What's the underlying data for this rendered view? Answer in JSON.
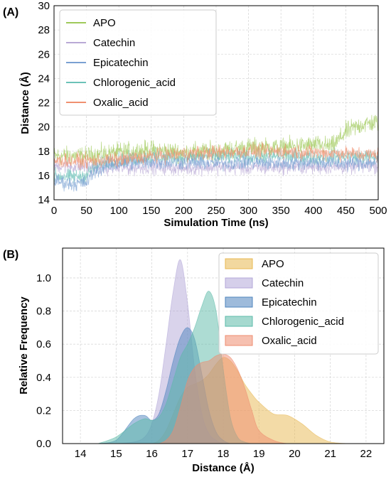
{
  "chart_data": [
    {
      "panel_label": "(A)",
      "type": "line",
      "xlabel": "Simulation Time (ns)",
      "ylabel": "Distance (Å)",
      "xlim": [
        0,
        500
      ],
      "ylim": [
        14,
        30
      ],
      "xticks": [
        0,
        50,
        100,
        150,
        200,
        250,
        300,
        350,
        400,
        450,
        500
      ],
      "yticks": [
        14,
        16,
        18,
        20,
        22,
        24,
        26,
        28,
        30
      ],
      "grid": true,
      "legend_position": "top-left",
      "series": [
        {
          "name": "APO",
          "color": "#9fc95a",
          "x": [
            0,
            50,
            100,
            150,
            200,
            250,
            300,
            350,
            400,
            430,
            450,
            475,
            500
          ],
          "y": [
            17.6,
            17.6,
            17.9,
            18.1,
            17.9,
            18.0,
            18.3,
            18.3,
            18.5,
            18.4,
            19.6,
            20.2,
            20.4
          ]
        },
        {
          "name": "Catechin",
          "color": "#b9a9d6",
          "x": [
            0,
            50,
            100,
            150,
            200,
            250,
            300,
            350,
            400,
            450,
            500
          ],
          "y": [
            16.8,
            16.7,
            16.6,
            16.7,
            16.6,
            16.7,
            16.6,
            16.7,
            16.7,
            16.7,
            16.8
          ]
        },
        {
          "name": "Epicatechin",
          "color": "#7aa0d2",
          "x": [
            0,
            25,
            50,
            60,
            80,
            100,
            150,
            200,
            250,
            300,
            350,
            400,
            450,
            500
          ],
          "y": [
            15.6,
            15.3,
            15.4,
            16.2,
            16.8,
            17.0,
            17.1,
            17.1,
            17.0,
            17.1,
            17.0,
            17.1,
            17.0,
            17.1
          ]
        },
        {
          "name": "Chlorogenic_acid",
          "color": "#6cc2b8",
          "x": [
            0,
            25,
            50,
            60,
            80,
            100,
            150,
            200,
            250,
            300,
            350,
            400,
            450,
            500
          ],
          "y": [
            16.0,
            15.9,
            16.0,
            16.6,
            17.1,
            17.3,
            17.5,
            17.5,
            17.6,
            17.5,
            17.6,
            17.5,
            17.6,
            17.5
          ]
        },
        {
          "name": "Oxalic_acid",
          "color": "#f09070",
          "x": [
            0,
            50,
            100,
            150,
            200,
            250,
            300,
            350,
            400,
            450,
            500
          ],
          "y": [
            17.2,
            17.2,
            17.3,
            17.6,
            17.8,
            17.9,
            18.0,
            18.0,
            17.9,
            17.8,
            17.7
          ]
        }
      ]
    },
    {
      "panel_label": "(B)",
      "type": "area",
      "xlabel": "Distance (Å)",
      "ylabel": "Relative Frequency",
      "xlim": [
        13.5,
        22.5
      ],
      "ylim": [
        0,
        1.18
      ],
      "xticks": [
        14,
        15,
        16,
        17,
        18,
        19,
        20,
        21,
        22
      ],
      "yticks": [
        0.0,
        0.2,
        0.4,
        0.6,
        0.8,
        1.0
      ],
      "ytick_labels": [
        "0.0",
        "0.2",
        "0.4",
        "0.6",
        "0.8",
        "1.0"
      ],
      "grid": true,
      "legend_position": "top-right",
      "x": [
        14.5,
        15.0,
        15.5,
        15.8,
        16.0,
        16.2,
        16.4,
        16.6,
        16.8,
        17.0,
        17.2,
        17.4,
        17.6,
        17.8,
        18.0,
        18.2,
        18.4,
        18.6,
        18.8,
        19.0,
        19.4,
        19.8,
        20.2,
        20.6,
        21.0,
        21.5
      ],
      "series": [
        {
          "name": "APO",
          "color": "#e8b850",
          "values": [
            0,
            0,
            0,
            0,
            0,
            0.02,
            0.08,
            0.18,
            0.28,
            0.34,
            0.36,
            0.38,
            0.42,
            0.48,
            0.52,
            0.5,
            0.44,
            0.36,
            0.3,
            0.25,
            0.18,
            0.17,
            0.12,
            0.05,
            0.01,
            0
          ]
        },
        {
          "name": "Catechin",
          "color": "#b3a7d8",
          "values": [
            0,
            0,
            0.01,
            0.04,
            0.12,
            0.3,
            0.6,
            0.92,
            1.11,
            0.85,
            0.45,
            0.18,
            0.06,
            0.02,
            0,
            0,
            0,
            0,
            0,
            0,
            0,
            0,
            0,
            0,
            0,
            0
          ]
        },
        {
          "name": "Epicatechin",
          "color": "#4f84be",
          "values": [
            0,
            0.02,
            0.15,
            0.17,
            0.14,
            0.18,
            0.32,
            0.5,
            0.64,
            0.7,
            0.63,
            0.42,
            0.2,
            0.07,
            0.02,
            0,
            0,
            0,
            0,
            0,
            0,
            0,
            0,
            0,
            0,
            0
          ]
        },
        {
          "name": "Chlorogenic_acid",
          "color": "#5bbaa8",
          "values": [
            0,
            0.04,
            0.12,
            0.15,
            0.14,
            0.16,
            0.24,
            0.38,
            0.52,
            0.6,
            0.7,
            0.83,
            0.92,
            0.8,
            0.45,
            0.16,
            0.04,
            0.01,
            0,
            0,
            0,
            0,
            0,
            0,
            0,
            0
          ]
        },
        {
          "name": "Oxalic_acid",
          "color": "#ef8c70",
          "values": [
            0,
            0,
            0,
            0,
            0,
            0,
            0.02,
            0.08,
            0.22,
            0.38,
            0.46,
            0.49,
            0.5,
            0.53,
            0.54,
            0.52,
            0.45,
            0.34,
            0.2,
            0.08,
            0.02,
            0,
            0,
            0,
            0,
            0
          ]
        }
      ]
    }
  ]
}
